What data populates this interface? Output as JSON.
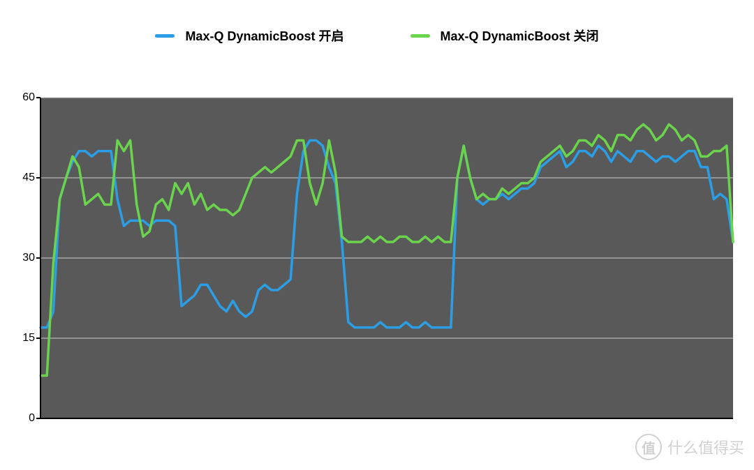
{
  "legend": {
    "items": [
      {
        "label": "Max-Q DynamicBoost 开启",
        "color": "#2b9ee6"
      },
      {
        "label": "Max-Q DynamicBoost 关闭",
        "color": "#6bd44d"
      }
    ]
  },
  "chart": {
    "type": "line",
    "background_color": "#ffffff",
    "plot_background_color": "#595959",
    "grid_color": "#d0d0d0",
    "axis_color": "#000000",
    "tick_color": "#000000",
    "ylim": [
      0,
      60
    ],
    "yticks": [
      0,
      15,
      30,
      45,
      60
    ],
    "ytick_labels": [
      "0",
      "15",
      "30",
      "45",
      "60"
    ],
    "label_fontsize": 16,
    "legend_fontsize": 18,
    "line_width": 3.5,
    "series": [
      {
        "name": "Max-Q DynamicBoost 开启",
        "color": "#2b9ee6",
        "values": [
          17,
          17,
          20,
          41,
          45,
          48,
          50,
          50,
          49,
          50,
          50,
          50,
          41,
          36,
          37,
          37,
          37,
          36,
          37,
          37,
          37,
          36,
          21,
          22,
          23,
          25,
          25,
          23,
          21,
          20,
          22,
          20,
          19,
          20,
          24,
          25,
          24,
          24,
          25,
          26,
          42,
          50,
          52,
          52,
          51,
          47,
          44,
          33,
          18,
          17,
          17,
          17,
          17,
          18,
          17,
          17,
          17,
          18,
          17,
          17,
          18,
          17,
          17,
          17,
          17,
          45,
          51,
          45,
          41,
          40,
          41,
          41,
          42,
          41,
          42,
          43,
          43,
          44,
          47,
          48,
          49,
          50,
          47,
          48,
          50,
          50,
          49,
          51,
          50,
          48,
          50,
          49,
          48,
          50,
          50,
          49,
          48,
          49,
          49,
          48,
          49,
          50,
          50,
          47,
          47,
          41,
          42,
          41,
          33
        ]
      },
      {
        "name": "Max-Q DynamicBoost 关闭",
        "color": "#6bd44d",
        "values": [
          8,
          8,
          29,
          41,
          45,
          49,
          47,
          40,
          41,
          42,
          40,
          40,
          52,
          50,
          52,
          40,
          34,
          35,
          40,
          41,
          39,
          44,
          42,
          44,
          40,
          42,
          39,
          40,
          39,
          39,
          38,
          39,
          42,
          45,
          46,
          47,
          46,
          47,
          48,
          49,
          52,
          52,
          44,
          40,
          44,
          52,
          46,
          34,
          33,
          33,
          33,
          34,
          33,
          34,
          33,
          33,
          34,
          34,
          33,
          33,
          34,
          33,
          34,
          33,
          33,
          45,
          51,
          45,
          41,
          42,
          41,
          41,
          43,
          42,
          43,
          44,
          44,
          45,
          48,
          49,
          50,
          51,
          49,
          50,
          52,
          52,
          51,
          53,
          52,
          50,
          53,
          53,
          52,
          54,
          55,
          54,
          52,
          53,
          55,
          54,
          52,
          53,
          52,
          49,
          49,
          50,
          50,
          51,
          33
        ]
      }
    ]
  },
  "watermark": {
    "badge": "值",
    "text": "什么值得买"
  }
}
